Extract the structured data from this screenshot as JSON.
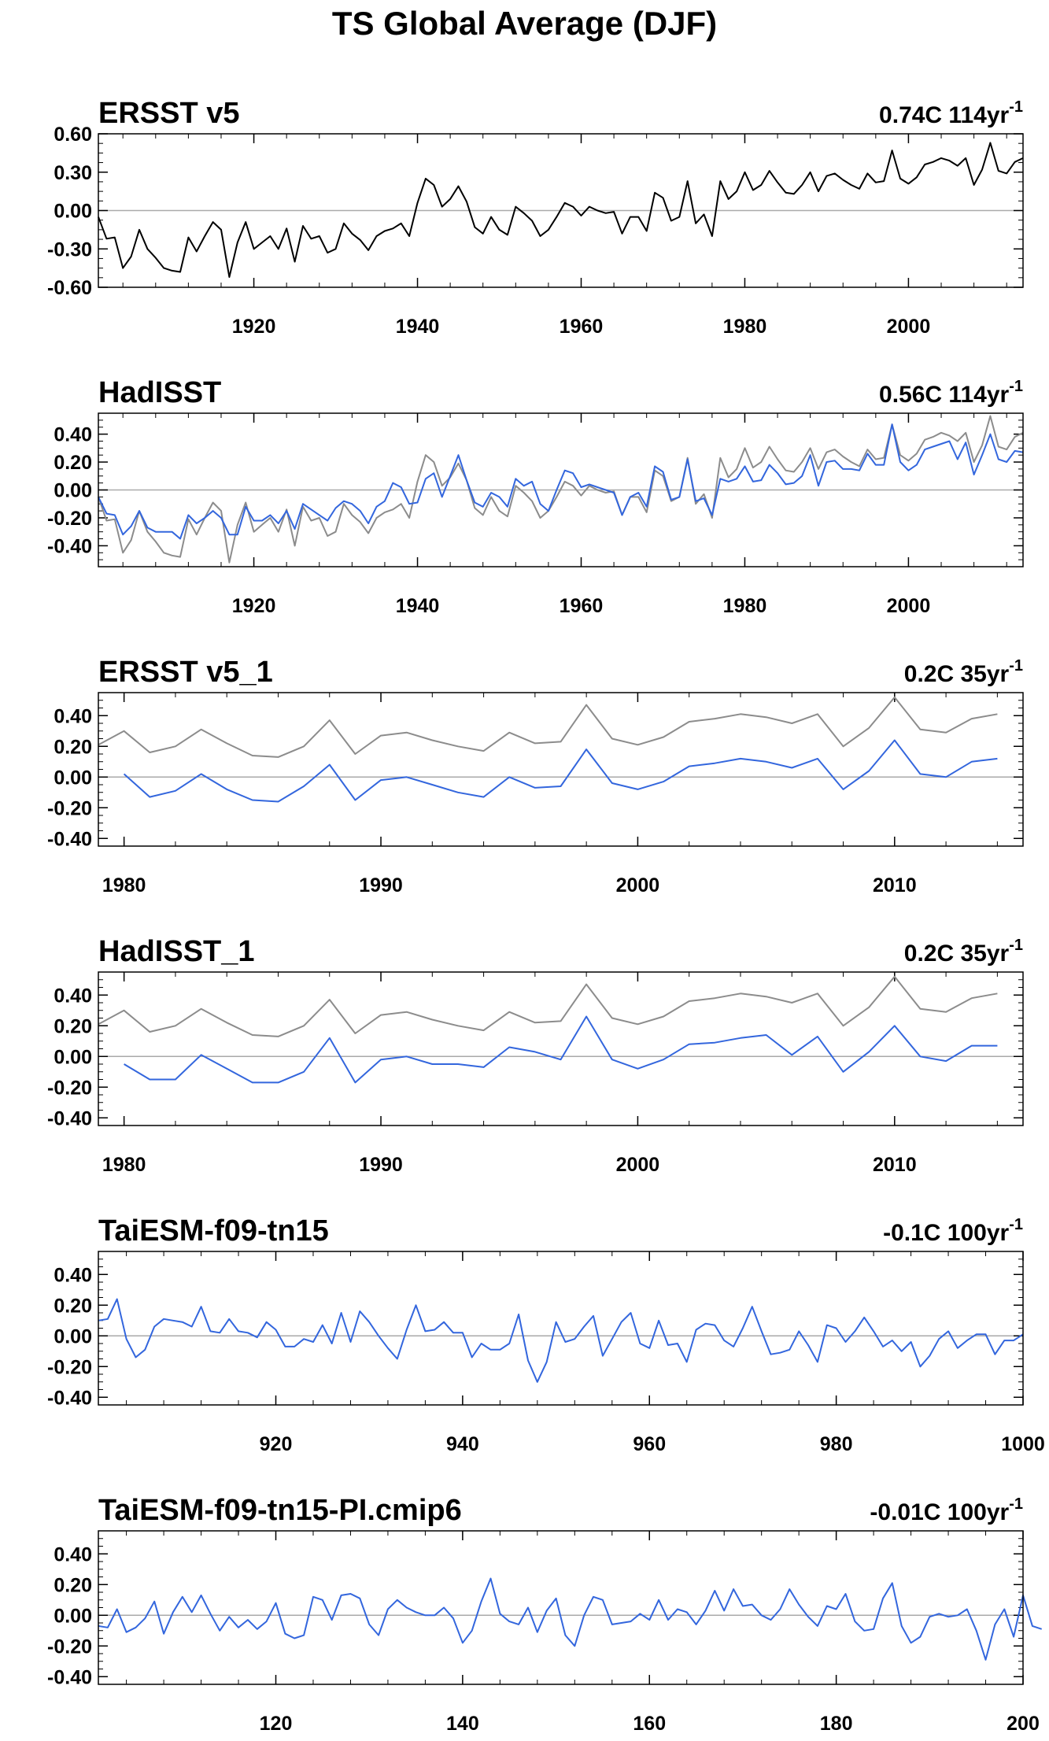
{
  "title": "TS Global Average (DJF)",
  "colors": {
    "obs": "#000000",
    "ref": "#8c8c8c",
    "model": "#3366dd",
    "zero": "#aaaaaa"
  },
  "chart_data": [
    {
      "type": "line",
      "title": "ERSST v5",
      "trend_label": "0.74C 114yr",
      "trend_sup": "-1",
      "xlim": [
        1901,
        2014
      ],
      "ylim": [
        -0.6,
        0.6
      ],
      "yticks": [
        -0.6,
        -0.3,
        0.0,
        0.3,
        0.6
      ],
      "ytick_labels": [
        "-0.60",
        "-0.30",
        "0.00",
        "0.30",
        "0.60"
      ],
      "xticks": [
        1920,
        1940,
        1960,
        1980,
        2000
      ],
      "xtick_labels": [
        "1920",
        "1940",
        "1960",
        "1980",
        "2000"
      ],
      "series": [
        {
          "role": "obs",
          "x_start": 1901,
          "values": [
            -0.05,
            -0.22,
            -0.21,
            -0.45,
            -0.36,
            -0.15,
            -0.3,
            -0.37,
            -0.45,
            -0.47,
            -0.48,
            -0.21,
            -0.32,
            -0.2,
            -0.09,
            -0.15,
            -0.52,
            -0.25,
            -0.09,
            -0.3,
            -0.25,
            -0.2,
            -0.3,
            -0.14,
            -0.4,
            -0.12,
            -0.22,
            -0.2,
            -0.33,
            -0.3,
            -0.1,
            -0.18,
            -0.23,
            -0.31,
            -0.2,
            -0.16,
            -0.14,
            -0.1,
            -0.2,
            0.06,
            0.25,
            0.2,
            0.03,
            0.09,
            0.19,
            0.07,
            -0.13,
            -0.18,
            -0.05,
            -0.15,
            -0.19,
            0.03,
            -0.02,
            -0.08,
            -0.2,
            -0.15,
            -0.05,
            0.06,
            0.03,
            -0.04,
            0.03,
            0.0,
            -0.02,
            -0.01,
            -0.18,
            -0.05,
            -0.05,
            -0.16,
            0.14,
            0.1,
            -0.08,
            -0.05,
            0.23,
            -0.1,
            -0.03,
            -0.2,
            0.23,
            0.09,
            0.15,
            0.3,
            0.16,
            0.2,
            0.31,
            0.22,
            0.14,
            0.13,
            0.2,
            0.3,
            0.15,
            0.27,
            0.29,
            0.24,
            0.2,
            0.17,
            0.29,
            0.22,
            0.23,
            0.47,
            0.25,
            0.21,
            0.26,
            0.36,
            0.38,
            0.41,
            0.39,
            0.35,
            0.41,
            0.2,
            0.32,
            0.53,
            0.31,
            0.29,
            0.38,
            0.41
          ]
        }
      ]
    },
    {
      "type": "line",
      "title": "HadISST",
      "trend_label": "0.56C 114yr",
      "trend_sup": "-1",
      "xlim": [
        1901,
        2014
      ],
      "ylim": [
        -0.55,
        0.55
      ],
      "yticks": [
        -0.4,
        -0.2,
        0.0,
        0.2,
        0.4
      ],
      "ytick_labels": [
        "-0.40",
        "-0.20",
        "0.00",
        "0.20",
        "0.40"
      ],
      "xticks": [
        1920,
        1940,
        1960,
        1980,
        2000
      ],
      "xtick_labels": [
        "1920",
        "1940",
        "1960",
        "1980",
        "2000"
      ],
      "series": [
        {
          "role": "ref",
          "x_start": 1901,
          "values": [
            -0.05,
            -0.22,
            -0.21,
            -0.45,
            -0.36,
            -0.15,
            -0.3,
            -0.37,
            -0.45,
            -0.47,
            -0.48,
            -0.21,
            -0.32,
            -0.2,
            -0.09,
            -0.15,
            -0.52,
            -0.25,
            -0.09,
            -0.3,
            -0.25,
            -0.2,
            -0.3,
            -0.14,
            -0.4,
            -0.12,
            -0.22,
            -0.2,
            -0.33,
            -0.3,
            -0.1,
            -0.18,
            -0.23,
            -0.31,
            -0.2,
            -0.16,
            -0.14,
            -0.1,
            -0.2,
            0.06,
            0.25,
            0.2,
            0.03,
            0.09,
            0.19,
            0.07,
            -0.13,
            -0.18,
            -0.05,
            -0.15,
            -0.19,
            0.03,
            -0.02,
            -0.08,
            -0.2,
            -0.15,
            -0.05,
            0.06,
            0.03,
            -0.04,
            0.03,
            0.0,
            -0.02,
            -0.01,
            -0.18,
            -0.05,
            -0.05,
            -0.16,
            0.14,
            0.1,
            -0.08,
            -0.05,
            0.23,
            -0.1,
            -0.03,
            -0.2,
            0.23,
            0.09,
            0.15,
            0.3,
            0.16,
            0.2,
            0.31,
            0.22,
            0.14,
            0.13,
            0.2,
            0.3,
            0.15,
            0.27,
            0.29,
            0.24,
            0.2,
            0.17,
            0.29,
            0.22,
            0.23,
            0.47,
            0.25,
            0.21,
            0.26,
            0.36,
            0.38,
            0.41,
            0.39,
            0.35,
            0.41,
            0.2,
            0.32,
            0.53,
            0.31,
            0.29,
            0.38,
            0.41
          ]
        },
        {
          "role": "model",
          "x_start": 1901,
          "values": [
            -0.05,
            -0.17,
            -0.18,
            -0.32,
            -0.26,
            -0.15,
            -0.27,
            -0.3,
            -0.3,
            -0.3,
            -0.35,
            -0.18,
            -0.24,
            -0.2,
            -0.15,
            -0.2,
            -0.32,
            -0.32,
            -0.12,
            -0.22,
            -0.22,
            -0.18,
            -0.24,
            -0.15,
            -0.28,
            -0.1,
            -0.14,
            -0.18,
            -0.22,
            -0.13,
            -0.08,
            -0.1,
            -0.15,
            -0.24,
            -0.12,
            -0.08,
            0.05,
            0.02,
            -0.1,
            -0.09,
            0.08,
            0.12,
            -0.05,
            0.1,
            0.25,
            0.07,
            -0.09,
            -0.12,
            -0.02,
            -0.05,
            -0.12,
            0.08,
            0.03,
            0.06,
            -0.1,
            -0.15,
            0.0,
            0.14,
            0.12,
            0.02,
            0.04,
            0.02,
            0.0,
            -0.02,
            -0.18,
            -0.05,
            -0.02,
            -0.12,
            0.17,
            0.13,
            -0.07,
            -0.05,
            0.22,
            -0.08,
            -0.06,
            -0.18,
            0.08,
            0.06,
            0.08,
            0.17,
            0.06,
            0.07,
            0.18,
            0.12,
            0.04,
            0.05,
            0.1,
            0.25,
            0.03,
            0.2,
            0.21,
            0.15,
            0.15,
            0.14,
            0.26,
            0.18,
            0.18,
            0.47,
            0.2,
            0.14,
            0.18,
            0.29,
            0.31,
            0.33,
            0.35,
            0.22,
            0.34,
            0.11,
            0.25,
            0.4,
            0.22,
            0.2,
            0.28,
            0.27
          ]
        }
      ]
    },
    {
      "type": "line",
      "title": "ERSST v5_1",
      "trend_label": "0.2C 35yr",
      "trend_sup": "-1",
      "xlim": [
        1979,
        2015
      ],
      "ylim": [
        -0.45,
        0.55
      ],
      "yticks": [
        -0.4,
        -0.2,
        0.0,
        0.2,
        0.4
      ],
      "ytick_labels": [
        "-0.40",
        "-0.20",
        "0.00",
        "0.20",
        "0.40"
      ],
      "xticks": [
        1980,
        1990,
        2000,
        2010
      ],
      "xtick_labels": [
        "1980",
        "1990",
        "2000",
        "2010"
      ],
      "series": [
        {
          "role": "ref",
          "x_start": 1979,
          "values": [
            0.21,
            0.3,
            0.16,
            0.2,
            0.31,
            0.22,
            0.14,
            0.13,
            0.2,
            0.37,
            0.15,
            0.27,
            0.29,
            0.24,
            0.2,
            0.17,
            0.29,
            0.22,
            0.23,
            0.47,
            0.25,
            0.21,
            0.26,
            0.36,
            0.38,
            0.41,
            0.39,
            0.35,
            0.41,
            0.2,
            0.32,
            0.52,
            0.31,
            0.29,
            0.38,
            0.41
          ]
        },
        {
          "role": "model",
          "x_start": 1980,
          "values": [
            0.02,
            -0.13,
            -0.09,
            0.02,
            -0.08,
            -0.15,
            -0.16,
            -0.06,
            0.08,
            -0.15,
            -0.02,
            0.0,
            -0.05,
            -0.1,
            -0.13,
            0.0,
            -0.07,
            -0.06,
            0.18,
            -0.04,
            -0.08,
            -0.03,
            0.07,
            0.09,
            0.12,
            0.1,
            0.06,
            0.12,
            -0.08,
            0.04,
            0.24,
            0.02,
            0.0,
            0.1,
            0.12
          ]
        }
      ]
    },
    {
      "type": "line",
      "title": "HadISST_1",
      "trend_label": "0.2C 35yr",
      "trend_sup": "-1",
      "xlim": [
        1979,
        2015
      ],
      "ylim": [
        -0.45,
        0.55
      ],
      "yticks": [
        -0.4,
        -0.2,
        0.0,
        0.2,
        0.4
      ],
      "ytick_labels": [
        "-0.40",
        "-0.20",
        "0.00",
        "0.20",
        "0.40"
      ],
      "xticks": [
        1980,
        1990,
        2000,
        2010
      ],
      "xtick_labels": [
        "1980",
        "1990",
        "2000",
        "2010"
      ],
      "series": [
        {
          "role": "ref",
          "x_start": 1979,
          "values": [
            0.21,
            0.3,
            0.16,
            0.2,
            0.31,
            0.22,
            0.14,
            0.13,
            0.2,
            0.37,
            0.15,
            0.27,
            0.29,
            0.24,
            0.2,
            0.17,
            0.29,
            0.22,
            0.23,
            0.47,
            0.25,
            0.21,
            0.26,
            0.36,
            0.38,
            0.41,
            0.39,
            0.35,
            0.41,
            0.2,
            0.32,
            0.52,
            0.31,
            0.29,
            0.38,
            0.41
          ]
        },
        {
          "role": "model",
          "x_start": 1980,
          "values": [
            -0.05,
            -0.15,
            -0.15,
            0.01,
            -0.08,
            -0.17,
            -0.17,
            -0.1,
            0.12,
            -0.17,
            -0.02,
            0.0,
            -0.05,
            -0.05,
            -0.07,
            0.06,
            0.03,
            -0.02,
            0.26,
            -0.02,
            -0.08,
            -0.02,
            0.08,
            0.09,
            0.12,
            0.14,
            0.01,
            0.13,
            -0.1,
            0.03,
            0.2,
            0.0,
            -0.03,
            0.07,
            0.07
          ]
        }
      ]
    },
    {
      "type": "line",
      "title": "TaiESM-f09-tn15",
      "trend_label": "-0.1C 100yr",
      "trend_sup": "-1",
      "xlim": [
        901,
        1000
      ],
      "ylim": [
        -0.45,
        0.55
      ],
      "yticks": [
        -0.4,
        -0.2,
        0.0,
        0.2,
        0.4
      ],
      "ytick_labels": [
        "-0.40",
        "-0.20",
        "0.00",
        "0.20",
        "0.40"
      ],
      "xticks": [
        920,
        940,
        960,
        980,
        1000
      ],
      "xtick_labels": [
        "920",
        "940",
        "960",
        "980",
        "1000"
      ],
      "series": [
        {
          "role": "model",
          "x_start": 901,
          "values": [
            0.1,
            0.11,
            0.24,
            -0.02,
            -0.14,
            -0.09,
            0.06,
            0.11,
            0.1,
            0.09,
            0.06,
            0.19,
            0.03,
            0.02,
            0.11,
            0.03,
            0.02,
            -0.01,
            0.09,
            0.04,
            -0.07,
            -0.07,
            -0.02,
            -0.04,
            0.07,
            -0.05,
            0.15,
            -0.04,
            0.16,
            0.09,
            0.0,
            -0.08,
            -0.15,
            0.04,
            0.2,
            0.03,
            0.04,
            0.09,
            0.02,
            0.02,
            -0.14,
            -0.05,
            -0.09,
            -0.09,
            -0.05,
            0.14,
            -0.16,
            -0.3,
            -0.17,
            0.09,
            -0.04,
            -0.02,
            0.06,
            0.13,
            -0.13,
            -0.02,
            0.09,
            0.15,
            -0.05,
            -0.08,
            0.1,
            -0.06,
            -0.05,
            -0.17,
            0.04,
            0.08,
            0.07,
            -0.03,
            -0.07,
            0.05,
            0.19,
            0.03,
            -0.12,
            -0.11,
            -0.09,
            0.03,
            -0.06,
            -0.17,
            0.07,
            0.05,
            -0.04,
            0.03,
            0.12,
            0.03,
            -0.07,
            -0.03,
            -0.1,
            -0.04,
            -0.2,
            -0.13,
            -0.02,
            0.03,
            -0.08,
            -0.03,
            0.01,
            0.01,
            -0.12,
            -0.03,
            -0.03,
            0.01
          ]
        }
      ]
    },
    {
      "type": "line",
      "title": "TaiESM-f09-tn15-PI.cmip6",
      "trend_label": "-0.01C 100yr",
      "trend_sup": "-1",
      "xlim": [
        101,
        200
      ],
      "ylim": [
        -0.45,
        0.55
      ],
      "yticks": [
        -0.4,
        -0.2,
        0.0,
        0.2,
        0.4
      ],
      "ytick_labels": [
        "-0.40",
        "-0.20",
        "0.00",
        "0.20",
        "0.40"
      ],
      "xticks": [
        120,
        140,
        160,
        180,
        200
      ],
      "xtick_labels": [
        "120",
        "140",
        "160",
        "180",
        "200"
      ],
      "series": [
        {
          "role": "model",
          "x_start": 101,
          "values": [
            -0.07,
            -0.08,
            0.04,
            -0.11,
            -0.08,
            -0.02,
            0.09,
            -0.12,
            0.02,
            0.12,
            0.02,
            0.13,
            0.01,
            -0.1,
            -0.01,
            -0.08,
            -0.03,
            -0.09,
            -0.04,
            0.08,
            -0.12,
            -0.15,
            -0.13,
            0.12,
            0.1,
            -0.03,
            0.13,
            0.14,
            0.11,
            -0.06,
            -0.13,
            0.04,
            0.1,
            0.05,
            0.02,
            0.0,
            0.0,
            0.05,
            -0.02,
            -0.18,
            -0.1,
            0.09,
            0.24,
            0.01,
            -0.04,
            -0.06,
            0.05,
            -0.11,
            0.03,
            0.11,
            -0.13,
            -0.2,
            0.0,
            0.12,
            0.1,
            -0.06,
            -0.05,
            -0.04,
            0.01,
            -0.03,
            0.1,
            -0.03,
            0.04,
            0.02,
            -0.06,
            0.03,
            0.16,
            0.03,
            0.17,
            0.06,
            0.07,
            0.0,
            -0.03,
            0.04,
            0.17,
            0.07,
            -0.01,
            -0.07,
            0.06,
            0.04,
            0.14,
            -0.04,
            -0.1,
            -0.09,
            0.11,
            0.21,
            -0.07,
            -0.18,
            -0.14,
            -0.01,
            0.01,
            -0.01,
            0.0,
            0.04,
            -0.1,
            -0.29,
            -0.06,
            0.04,
            -0.14,
            0.13,
            -0.07,
            -0.09
          ]
        }
      ]
    }
  ]
}
